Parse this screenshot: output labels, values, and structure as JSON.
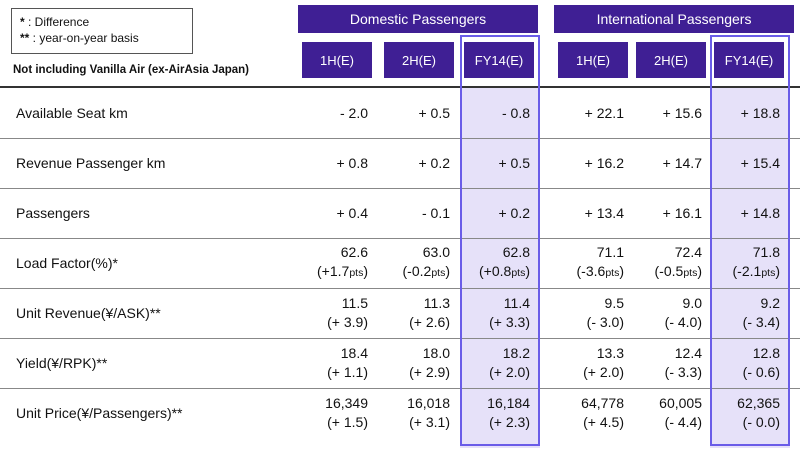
{
  "legend": {
    "items": [
      {
        "mark": "*",
        "text": " : Difference"
      },
      {
        "mark": "**",
        "text": " : year-on-year basis"
      }
    ]
  },
  "subtitle": "Not including Vanilla Air (ex-AirAsia Japan)",
  "groups": [
    "Domestic Passengers",
    "International Passengers"
  ],
  "columns": [
    "1H(E)",
    "2H(E)",
    "FY14(E)",
    "1H(E)",
    "2H(E)",
    "FY14(E)"
  ],
  "highlight_color": "#e6e1f9",
  "header_color": "#3f1f94",
  "rows": [
    {
      "label": "Available Seat km",
      "cells": [
        {
          "v": "- 2.0"
        },
        {
          "v": "+ 0.5"
        },
        {
          "v": "- 0.8"
        },
        {
          "v": "+ 22.1"
        },
        {
          "v": "+ 15.6"
        },
        {
          "v": "+ 18.8"
        }
      ]
    },
    {
      "label": "Revenue Passenger km",
      "cells": [
        {
          "v": "+ 0.8"
        },
        {
          "v": "+ 0.2"
        },
        {
          "v": "+ 0.5"
        },
        {
          "v": "+ 16.2"
        },
        {
          "v": "+ 14.7"
        },
        {
          "v": "+ 15.4"
        }
      ]
    },
    {
      "label": "Passengers",
      "cells": [
        {
          "v": "+ 0.4"
        },
        {
          "v": "- 0.1"
        },
        {
          "v": "+ 0.2"
        },
        {
          "v": "+ 13.4"
        },
        {
          "v": "+ 16.1"
        },
        {
          "v": "+ 14.8"
        }
      ]
    },
    {
      "label": "Load Factor(%)*",
      "cells": [
        {
          "v": "62.6",
          "s": "(+1.7",
          "u": "pts",
          "e": ")"
        },
        {
          "v": "63.0",
          "s": "(-0.2",
          "u": "pts",
          "e": ")"
        },
        {
          "v": "62.8",
          "s": "(+0.8",
          "u": "pts",
          "e": ")"
        },
        {
          "v": "71.1",
          "s": "(-3.6",
          "u": "pts",
          "e": ")"
        },
        {
          "v": "72.4",
          "s": "(-0.5",
          "u": "pts",
          "e": ")"
        },
        {
          "v": "71.8",
          "s": "(-2.1",
          "u": "pts",
          "e": ")"
        }
      ]
    },
    {
      "label": "Unit Revenue(¥/ASK)**",
      "cells": [
        {
          "v": "11.5",
          "s": "(+ 3.9)"
        },
        {
          "v": "11.3",
          "s": "(+ 2.6)"
        },
        {
          "v": "11.4",
          "s": "(+ 3.3)"
        },
        {
          "v": "9.5",
          "s": "(- 3.0)"
        },
        {
          "v": "9.0",
          "s": "(- 4.0)"
        },
        {
          "v": "9.2",
          "s": "(- 3.4)"
        }
      ]
    },
    {
      "label": "Yield(¥/RPK)**",
      "cells": [
        {
          "v": "18.4",
          "s": "(+ 1.1)"
        },
        {
          "v": "18.0",
          "s": "(+ 2.9)"
        },
        {
          "v": "18.2",
          "s": "(+ 2.0)"
        },
        {
          "v": "13.3",
          "s": "(+ 2.0)"
        },
        {
          "v": "12.4",
          "s": "(- 3.3)"
        },
        {
          "v": "12.8",
          "s": "(- 0.6)"
        }
      ]
    },
    {
      "label": "Unit Price(¥/Passengers)**",
      "cells": [
        {
          "v": "16,349",
          "s": "(+ 1.5)"
        },
        {
          "v": "16,018",
          "s": "(+ 3.1)"
        },
        {
          "v": "16,184",
          "s": "(+ 2.3)"
        },
        {
          "v": "64,778",
          "s": "(+ 4.5)"
        },
        {
          "v": "60,005",
          "s": "(- 4.4)"
        },
        {
          "v": "62,365",
          "s": "(- 0.0)"
        }
      ]
    }
  ]
}
